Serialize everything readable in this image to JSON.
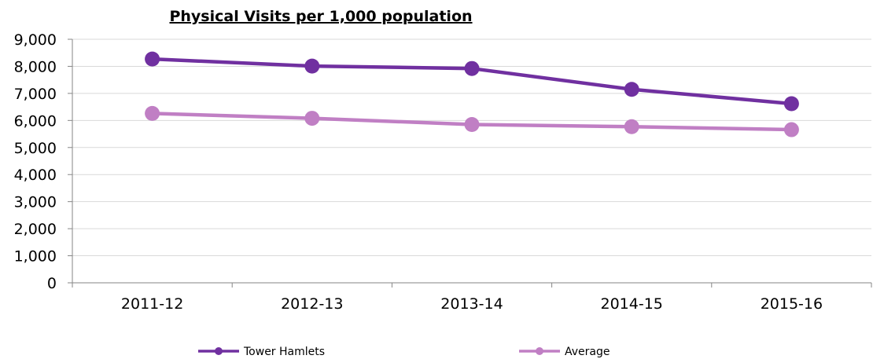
{
  "chart_data": {
    "type": "line",
    "title": "Physical Visits per 1,000 population",
    "xlabel": "",
    "ylabel": "",
    "categories": [
      "2011-12",
      "2012-13",
      "2013-14",
      "2014-15",
      "2015-16"
    ],
    "ylim": [
      0,
      9000
    ],
    "yticks": [
      0,
      1000,
      2000,
      3000,
      4000,
      5000,
      6000,
      7000,
      8000,
      9000
    ],
    "ytick_labels": [
      "0",
      "1,000",
      "2,000",
      "3,000",
      "4,000",
      "5,000",
      "6,000",
      "7,000",
      "8,000",
      "9,000"
    ],
    "grid": true,
    "legend_position": "bottom",
    "series": [
      {
        "name": "Tower Hamlets",
        "color": "#7030a0",
        "values": [
          8270,
          8010,
          7920,
          7150,
          6620
        ]
      },
      {
        "name": "Average",
        "color": "#c07fc4",
        "values": [
          6260,
          6080,
          5850,
          5770,
          5660
        ]
      }
    ]
  }
}
